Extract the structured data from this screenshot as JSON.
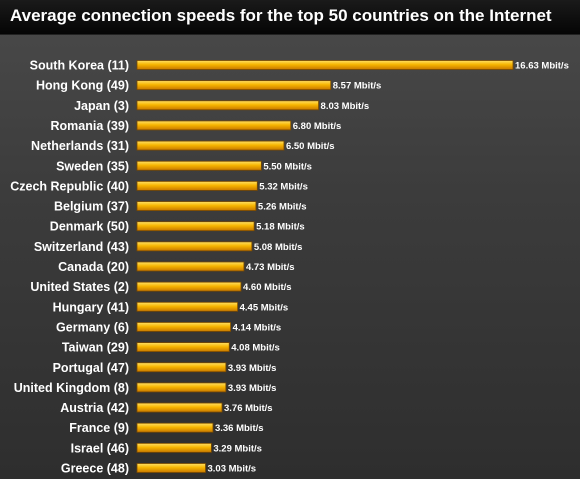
{
  "chart_data": {
    "type": "bar",
    "orientation": "horizontal",
    "title": "Average connection speeds for the top 50 countries on the Internet",
    "categories": [
      "South Korea (11)",
      "Hong Kong (49)",
      "Japan (3)",
      "Romania (39)",
      "Netherlands (31)",
      "Sweden (35)",
      "Czech Republic (40)",
      "Belgium (37)",
      "Denmark (50)",
      "Switzerland (43)",
      "Canada (20)",
      "United States (2)",
      "Hungary (41)",
      "Germany (6)",
      "Taiwan (29)",
      "Portugal (47)",
      "United Kingdom (8)",
      "Austria (42)",
      "France (9)",
      "Israel (46)",
      "Greece (48)"
    ],
    "values": [
      16.63,
      8.57,
      8.03,
      6.8,
      6.5,
      5.5,
      5.32,
      5.26,
      5.18,
      5.08,
      4.73,
      4.6,
      4.45,
      4.14,
      4.08,
      3.93,
      3.93,
      3.76,
      3.36,
      3.29,
      3.03
    ],
    "value_labels": [
      "16.63 Mbit/s",
      "8.57 Mbit/s",
      "8.03 Mbit/s",
      "6.80 Mbit/s",
      "6.50 Mbit/s",
      "5.50 Mbit/s",
      "5.32 Mbit/s",
      "5.26 Mbit/s",
      "5.18 Mbit/s",
      "5.08 Mbit/s",
      "4.73 Mbit/s",
      "4.60 Mbit/s",
      "4.45 Mbit/s",
      "4.14 Mbit/s",
      "4.08 Mbit/s",
      "3.93 Mbit/s",
      "3.93 Mbit/s",
      "3.76 Mbit/s",
      "3.36 Mbit/s",
      "3.29 Mbit/s",
      "3.03 Mbit/s"
    ],
    "xlim": [
      0,
      16.63
    ],
    "grid": false,
    "legend": "none",
    "colors": {
      "bar_light": "#ffe066",
      "bar_mid": "#f7b500",
      "bar_dark": "#c77800",
      "bar_border": "#7a4a00",
      "text": "#ffffff",
      "background": "#3c3c3c",
      "title_bg": "#0a0a0a"
    }
  }
}
